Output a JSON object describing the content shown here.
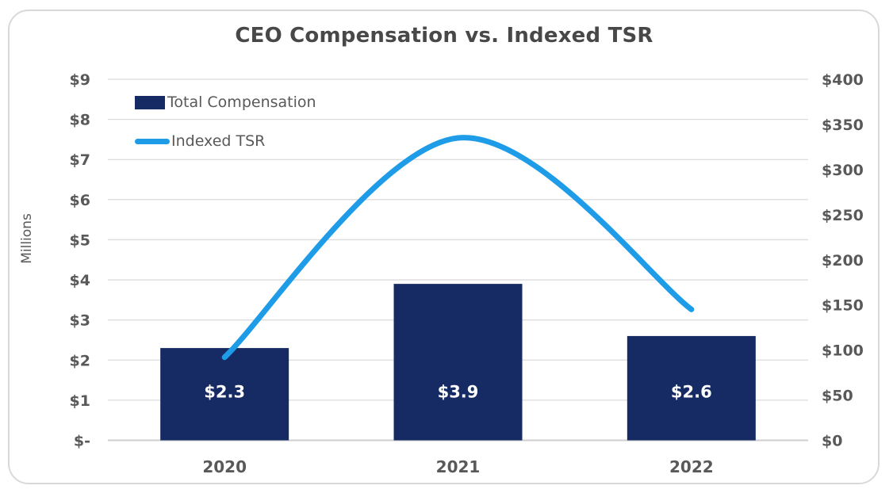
{
  "chart_data": {
    "type": "combo-bar-line",
    "title": "CEO Compensation vs. Indexed TSR",
    "categories": [
      "2020",
      "2021",
      "2022"
    ],
    "series": [
      {
        "name": "Total Compensation",
        "type": "bar",
        "axis": "left",
        "values": [
          2.3,
          3.9,
          2.6
        ],
        "labels": [
          "$2.3",
          "$3.9",
          "$2.6"
        ],
        "color": "#162b63"
      },
      {
        "name": "Indexed TSR",
        "type": "line",
        "axis": "right",
        "values": [
          92,
          335,
          145
        ],
        "color": "#1e9ce8"
      }
    ],
    "left_axis": {
      "title": "Millions",
      "min": 0,
      "max": 9,
      "ticks_bottom_to_top": [
        "$-",
        "$1",
        "$2",
        "$3",
        "$4",
        "$5",
        "$6",
        "$7",
        "$8",
        "$9"
      ]
    },
    "right_axis": {
      "min": 0,
      "max": 400,
      "ticks_bottom_to_top": [
        "$0",
        "$50",
        "$100",
        "$150",
        "$200",
        "$250",
        "$300",
        "$350",
        "$400"
      ]
    },
    "grid": true,
    "legend_position": "top-left-inside"
  },
  "colors": {
    "background": "#ffffff",
    "card_border": "#d9d9d9",
    "gridline": "#dcdcdc",
    "baseline": "#cfcfcf",
    "axis_text": "#595959",
    "title_text": "#484848",
    "bar_fill": "#162b63",
    "line_stroke": "#1e9ce8",
    "bar_label_text": "#ffffff"
  }
}
